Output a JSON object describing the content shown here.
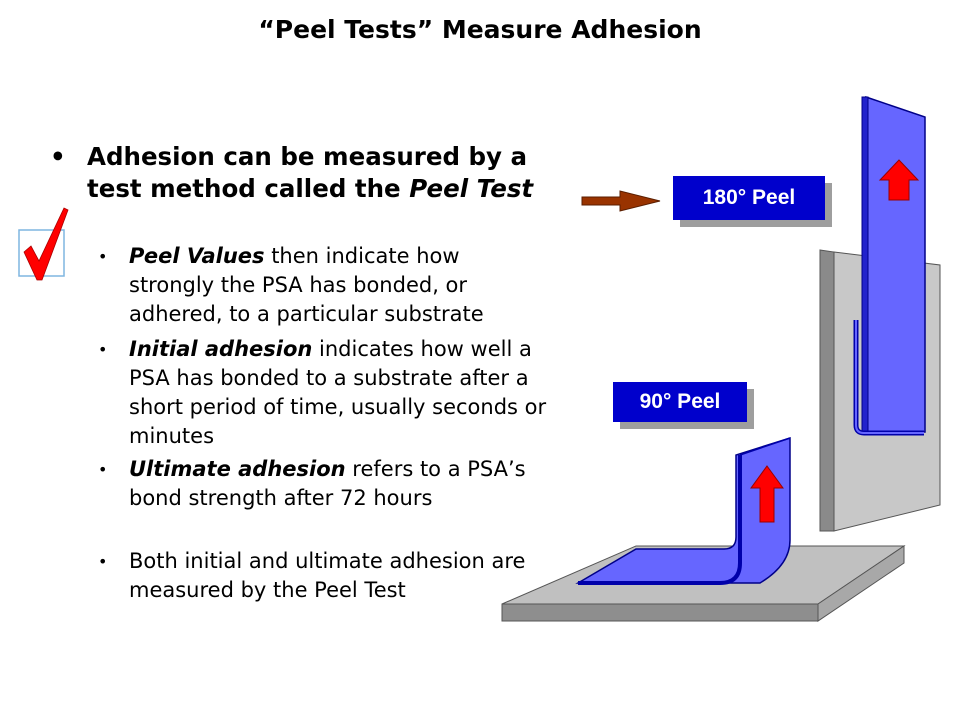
{
  "slide": {
    "title": "“Peel Tests” Measure Adhesion"
  },
  "main_bullet": {
    "bullet": "•",
    "text_plain": "Adhesion can be measured by a test method called the ",
    "text_italic": "Peel Test"
  },
  "sub_bullets": [
    {
      "bullet": "•",
      "emphasis": "Peel Values",
      "rest": " then indicate how strongly the PSA has bonded, or adhered, to a particular substrate"
    },
    {
      "bullet": "•",
      "emphasis": "Initial adhesion",
      "rest": " indicates how well a PSA has bonded to a substrate after a short period of time, usually seconds or minutes"
    },
    {
      "bullet": "•",
      "emphasis": "Ultimate adhesion",
      "rest": " refers to a PSA’s bond strength after 72 hours"
    },
    {
      "bullet": "•",
      "emphasis": "",
      "rest": "Both initial and ultimate adhesion are measured by the Peel Test"
    }
  ],
  "labels": {
    "peel_180": "180° Peel",
    "peel_90": "90° Peel"
  },
  "colors": {
    "label_bg": "#0000cc",
    "tape": "#6666ff",
    "tape_edge": "#0000aa",
    "arrow_up": "#ff0000",
    "pointer_arrow": "#993300",
    "plate": "#c0c0c0",
    "check": "#ff0000"
  },
  "icons": [
    "checkmark-icon",
    "pointer-arrow-icon",
    "up-arrow-icon"
  ]
}
